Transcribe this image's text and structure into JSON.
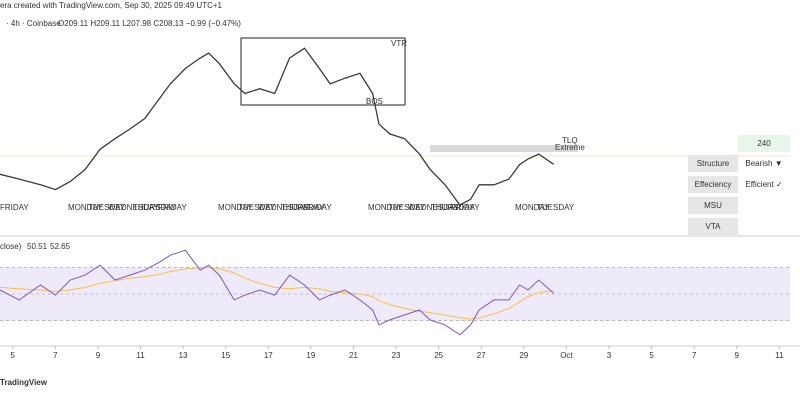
{
  "header": {
    "credit": "era created with TradingView.com, Sep 30, 2025 09:49 UTC+1",
    "symbol": "· 4h · Coinbase",
    "ohlc": "O209.11  H209.11  L207.98  C208.13  −0.99 (−0.47%)"
  },
  "price_chart": {
    "x": [
      4.4,
      5.3,
      6.3,
      7.0,
      7.7,
      8.4,
      9.1,
      9.8,
      10.5,
      11.2,
      11.9,
      12.4,
      13.1,
      13.8,
      14.2,
      14.7,
      15.4,
      15.9,
      16.6,
      17.3,
      18.0,
      18.7,
      19.4,
      19.9,
      20.6,
      21.3,
      21.9,
      22.2,
      22.7,
      23.4,
      24.1,
      24.6,
      25.3,
      26.0,
      26.5,
      26.9,
      27.6,
      28.3,
      28.8,
      29.2,
      29.7,
      30.4
    ],
    "values": [
      206.9,
      206.3,
      205.6,
      205.0,
      206.0,
      207.5,
      210.0,
      211.3,
      212.5,
      213.8,
      216.3,
      218.1,
      220.0,
      221.3,
      221.9,
      220.6,
      218.1,
      216.9,
      217.5,
      216.9,
      221.3,
      222.5,
      220.0,
      218.1,
      218.8,
      219.4,
      216.9,
      213.1,
      211.9,
      211.3,
      209.4,
      207.5,
      205.6,
      203.1,
      203.8,
      205.6,
      205.6,
      206.3,
      208.1,
      208.8,
      209.4,
      208.13
    ],
    "color": "#3a3a3a",
    "xlim": [
      4.4,
      41.5
    ],
    "ylim": [
      200,
      226
    ],
    "day_labels": [
      "FRIDAY",
      "MONDAY",
      "TUESDAY",
      "WEDNESDAY",
      "THURSDAY",
      "FRIDAY",
      "MONDAY",
      "TUESDAY",
      "WEDNESDAY",
      "THURSDAY",
      "FRIDAY",
      "MONDAY",
      "TUESDAY",
      "WEDNESDAY",
      "THURSDAY",
      "FRIDAY",
      "MONDAY",
      "TUESDAY"
    ],
    "annotations": {
      "vtr": "VTR",
      "bos": "BOS",
      "tlq": "TLQ",
      "extreme": "Extreme"
    }
  },
  "rsi": {
    "label": "close)",
    "values": [
      53.0,
      45.5,
      56.8,
      49.2,
      60.6,
      64.3,
      71.9,
      60.6,
      64.3,
      68.1,
      74.2,
      79.4,
      83.2,
      68.1,
      71.9,
      64.3,
      45.5,
      49.2,
      53.0,
      49.2,
      64.3,
      56.8,
      45.5,
      49.2,
      53.0,
      45.5,
      37.9,
      26.6,
      30.4,
      34.2,
      37.9,
      30.4,
      26.6,
      19.1,
      26.6,
      37.9,
      45.5,
      45.5,
      56.8,
      53.0,
      60.6,
      50.51
    ],
    "ma": [
      55,
      54,
      53,
      52,
      53,
      55,
      58,
      60,
      62,
      63,
      65,
      67,
      69,
      70,
      70,
      69,
      66,
      62,
      58,
      55,
      54,
      55,
      54,
      52,
      51,
      50,
      48,
      45,
      42,
      39,
      37,
      36,
      34,
      32,
      31,
      32,
      35,
      39,
      44,
      48,
      51,
      52.65
    ],
    "value_label": "50.51",
    "ma_label": "52.65",
    "color": "#7e57c2",
    "ma_color": "#f5c242",
    "ylim": [
      0,
      100
    ],
    "levels": [
      70,
      50,
      30
    ]
  },
  "xticks": [
    5,
    7,
    9,
    11,
    13,
    15,
    17,
    19,
    21,
    23,
    25,
    27,
    29,
    {
      "value": 31,
      "label": "Oct"
    },
    {
      "value": 33,
      "label": "3"
    },
    {
      "value": 35,
      "label": "5"
    },
    {
      "value": 37,
      "label": "7"
    },
    {
      "value": 39,
      "label": "9"
    },
    {
      "value": 41,
      "label": "11"
    }
  ],
  "panel": {
    "value": "240",
    "rows": [
      {
        "name": "Structure",
        "status": "Bearish ▼"
      },
      {
        "name": "Effeciency",
        "status": "Efficient ✓"
      },
      {
        "name": "MSU",
        "status": ""
      },
      {
        "name": "VTA",
        "status": ""
      }
    ]
  },
  "logo": "TradingView"
}
